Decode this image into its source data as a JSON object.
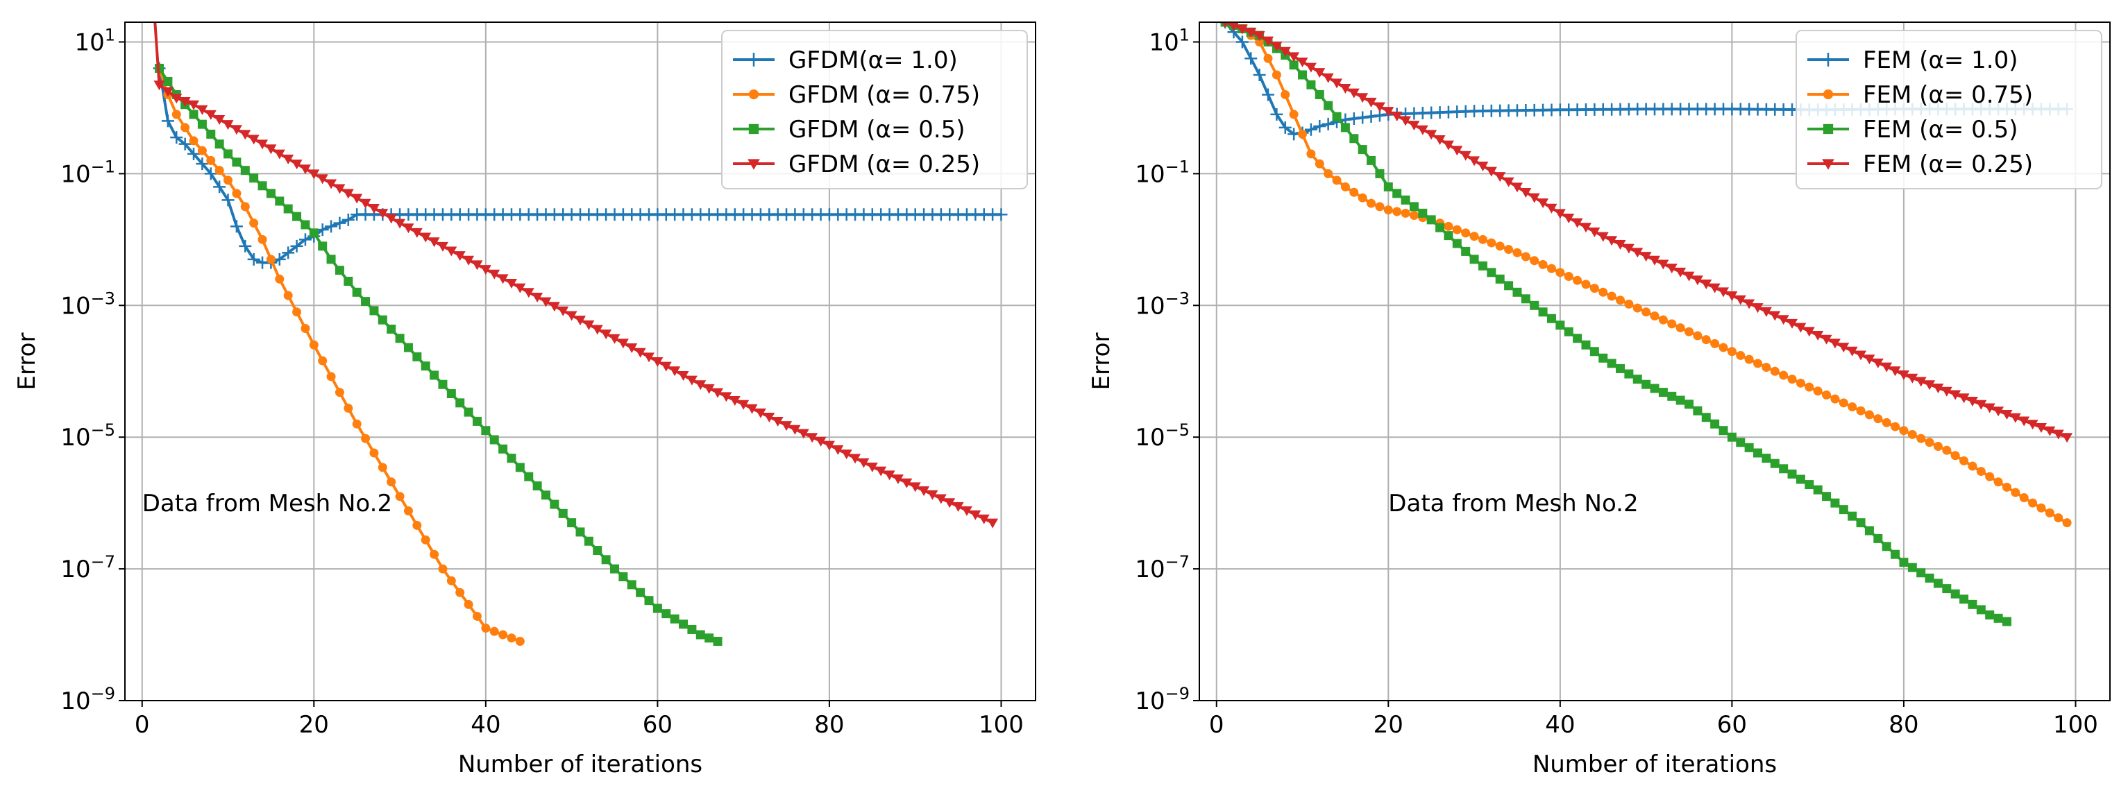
{
  "chart_data": [
    {
      "type": "line",
      "panel": "left",
      "title": "",
      "xlabel": "Number of iterations",
      "ylabel": "Error",
      "yscale": "log",
      "xlim": [
        -2,
        104
      ],
      "ylim_exp": [
        -9,
        1.3
      ],
      "xticks": [
        0,
        20,
        40,
        60,
        80,
        100
      ],
      "yticks_exp": [
        1,
        -1,
        -3,
        -5,
        -7,
        -9
      ],
      "grid": true,
      "legend_position": "top-right",
      "annotation": "Data from Mesh No.2",
      "annotation_pos": [
        0,
        -6
      ],
      "series": [
        {
          "name": "GFDM(α= 1.0)",
          "color": "#1f77b4",
          "marker": "plus",
          "x": [
            2,
            3,
            4,
            5,
            6,
            7,
            8,
            9,
            10,
            11,
            12,
            13,
            14,
            15,
            16,
            17,
            18,
            19,
            20,
            21,
            22,
            23,
            24,
            25,
            26,
            100
          ],
          "log10y": [
            0.6,
            -0.2,
            -0.45,
            -0.55,
            -0.7,
            -0.85,
            -1.0,
            -1.2,
            -1.4,
            -1.8,
            -2.1,
            -2.3,
            -2.35,
            -2.35,
            -2.3,
            -2.2,
            -2.1,
            -2.0,
            -1.95,
            -1.85,
            -1.8,
            -1.75,
            -1.7,
            -1.62,
            -1.62,
            -1.62
          ]
        },
        {
          "name": "GFDM (α= 0.75)",
          "color": "#ff7f0e",
          "marker": "circle",
          "x": [
            2,
            3,
            4,
            6,
            8,
            10,
            12,
            14,
            16,
            18,
            20,
            25,
            30,
            35,
            40,
            44
          ],
          "log10y": [
            0.6,
            0.2,
            -0.1,
            -0.5,
            -0.8,
            -1.1,
            -1.5,
            -2.0,
            -2.6,
            -3.1,
            -3.6,
            -4.8,
            -5.9,
            -7.0,
            -7.9,
            -8.1
          ]
        },
        {
          "name": "GFDM (α= 0.5)",
          "color": "#2ca02c",
          "marker": "square",
          "x": [
            2,
            3,
            4,
            5,
            6,
            8,
            10,
            12,
            15,
            18,
            20,
            22,
            25,
            30,
            35,
            40,
            45,
            50,
            55,
            60,
            65,
            67
          ],
          "log10y": [
            0.6,
            0.4,
            0.2,
            0.05,
            -0.1,
            -0.4,
            -0.7,
            -0.95,
            -1.3,
            -1.65,
            -1.9,
            -2.3,
            -2.8,
            -3.5,
            -4.2,
            -4.9,
            -5.6,
            -6.3,
            -7.0,
            -7.6,
            -8.0,
            -8.1
          ]
        },
        {
          "name": "GFDM (α= 0.25)",
          "color": "#d62728",
          "marker": "triangle_down",
          "x": [
            1.5,
            2,
            3,
            4,
            5,
            6,
            8,
            10,
            12,
            15,
            18,
            20,
            25,
            30,
            35,
            40,
            45,
            50,
            55,
            60,
            65,
            70,
            75,
            80,
            85,
            90,
            95,
            99
          ],
          "log10y": [
            1.3,
            0.35,
            0.25,
            0.15,
            0.1,
            0.05,
            -0.1,
            -0.25,
            -0.4,
            -0.62,
            -0.85,
            -1.0,
            -1.37,
            -1.75,
            -2.1,
            -2.45,
            -2.8,
            -3.15,
            -3.5,
            -3.85,
            -4.2,
            -4.5,
            -4.82,
            -5.12,
            -5.45,
            -5.75,
            -6.05,
            -6.3
          ]
        }
      ]
    },
    {
      "type": "line",
      "panel": "right",
      "title": "",
      "xlabel": "Number of iterations",
      "ylabel": "Error",
      "yscale": "log",
      "xlim": [
        -2,
        104
      ],
      "ylim_exp": [
        -9,
        1.3
      ],
      "xticks": [
        0,
        20,
        40,
        60,
        80,
        100
      ],
      "yticks_exp": [
        1,
        -1,
        -3,
        -5,
        -7,
        -9
      ],
      "grid": true,
      "legend_position": "top-right",
      "annotation": "Data from Mesh No.2",
      "annotation_pos": [
        20,
        -6
      ],
      "series": [
        {
          "name": "FEM (α= 1.0)",
          "color": "#1f77b4",
          "marker": "plus",
          "x": [
            1,
            3,
            5,
            6,
            7,
            8,
            9,
            10,
            12,
            15,
            20,
            30,
            40,
            50,
            60,
            70,
            80,
            90,
            99
          ],
          "log10y": [
            1.3,
            1.0,
            0.5,
            0.2,
            -0.1,
            -0.3,
            -0.4,
            -0.38,
            -0.28,
            -0.18,
            -0.1,
            -0.05,
            -0.03,
            -0.02,
            -0.02,
            -0.03,
            -0.02,
            -0.02,
            -0.02
          ]
        },
        {
          "name": "FEM (α= 0.75)",
          "color": "#ff7f0e",
          "marker": "circle",
          "x": [
            1,
            3,
            5,
            7,
            9,
            11,
            13,
            15,
            18,
            20,
            22,
            25,
            28,
            30,
            35,
            40,
            45,
            50,
            55,
            60,
            65,
            70,
            75,
            80,
            85,
            90,
            95,
            99
          ],
          "log10y": [
            1.3,
            1.2,
            1.0,
            0.5,
            -0.1,
            -0.7,
            -1.0,
            -1.2,
            -1.45,
            -1.55,
            -1.6,
            -1.7,
            -1.85,
            -1.95,
            -2.2,
            -2.5,
            -2.8,
            -3.1,
            -3.4,
            -3.7,
            -4.0,
            -4.3,
            -4.6,
            -4.9,
            -5.2,
            -5.6,
            -6.0,
            -6.3
          ]
        },
        {
          "name": "FEM (α= 0.5)",
          "color": "#2ca02c",
          "marker": "square",
          "x": [
            1,
            3,
            5,
            8,
            10,
            12,
            15,
            18,
            20,
            25,
            30,
            35,
            40,
            45,
            50,
            55,
            60,
            65,
            70,
            75,
            80,
            85,
            90,
            92
          ],
          "log10y": [
            1.3,
            1.2,
            1.1,
            0.8,
            0.5,
            0.2,
            -0.3,
            -0.8,
            -1.2,
            -1.7,
            -2.3,
            -2.8,
            -3.3,
            -3.8,
            -4.2,
            -4.5,
            -5.0,
            -5.4,
            -5.8,
            -6.3,
            -6.9,
            -7.3,
            -7.7,
            -7.8
          ]
        },
        {
          "name": "FEM (α= 0.25)",
          "color": "#d62728",
          "marker": "triangle_down",
          "x": [
            1,
            5,
            10,
            15,
            20,
            25,
            30,
            35,
            40,
            45,
            50,
            55,
            60,
            65,
            70,
            75,
            80,
            85,
            90,
            95,
            99
          ],
          "log10y": [
            1.3,
            1.1,
            0.7,
            0.3,
            -0.05,
            -0.4,
            -0.8,
            -1.2,
            -1.6,
            -1.95,
            -2.25,
            -2.55,
            -2.85,
            -3.15,
            -3.45,
            -3.75,
            -4.05,
            -4.3,
            -4.55,
            -4.8,
            -5.0
          ]
        }
      ]
    }
  ]
}
